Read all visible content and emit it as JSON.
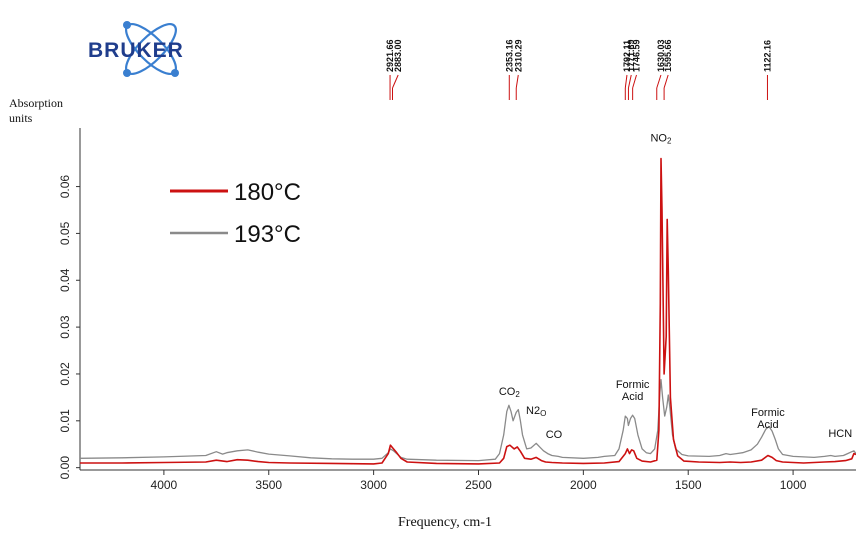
{
  "logo": {
    "text": "BRUKER"
  },
  "colors": {
    "series_180": "#cc1111",
    "series_193": "#8a8a8a",
    "peak_marker": "#cc1111",
    "logo": "#1f3d8c",
    "logo_orbit": "#3a7fd0"
  },
  "chart_data": {
    "type": "line",
    "title": "",
    "xlabel": "Frequency, cm-1",
    "ylabel": "Absorption units",
    "ylabel_lines": [
      "Absorption",
      "units"
    ],
    "xlim": [
      4400,
      700
    ],
    "ylim": [
      -0.0005,
      0.0725
    ],
    "xticks": [
      4000,
      3500,
      3000,
      2500,
      2000,
      1500,
      1000
    ],
    "xtick_labels": [
      "4000",
      "3500",
      "3000",
      "2500",
      "2000",
      "1500",
      "1000"
    ],
    "yticks": [
      0.0,
      0.01,
      0.02,
      0.03,
      0.04,
      0.05,
      0.06
    ],
    "ytick_labels": [
      "0.00",
      "0.01",
      "0.02",
      "0.03",
      "0.04",
      "0.05",
      "0.06"
    ],
    "x_reversed": true,
    "grid": false,
    "legend_position": "top-left",
    "series": [
      {
        "name": "180°C",
        "color": "#cc1111",
        "points": [
          [
            4400,
            0.001
          ],
          [
            4200,
            0.001
          ],
          [
            4000,
            0.0011
          ],
          [
            3800,
            0.0012
          ],
          [
            3750,
            0.0016
          ],
          [
            3700,
            0.0013
          ],
          [
            3650,
            0.0017
          ],
          [
            3600,
            0.0016
          ],
          [
            3550,
            0.0013
          ],
          [
            3500,
            0.0011
          ],
          [
            3400,
            0.001
          ],
          [
            3200,
            0.0009
          ],
          [
            3000,
            0.0008
          ],
          [
            2960,
            0.001
          ],
          [
            2930,
            0.003
          ],
          [
            2920,
            0.0048
          ],
          [
            2905,
            0.004
          ],
          [
            2890,
            0.0032
          ],
          [
            2870,
            0.002
          ],
          [
            2840,
            0.0012
          ],
          [
            2700,
            0.0009
          ],
          [
            2500,
            0.0008
          ],
          [
            2400,
            0.001
          ],
          [
            2380,
            0.002
          ],
          [
            2365,
            0.0045
          ],
          [
            2350,
            0.0048
          ],
          [
            2330,
            0.004
          ],
          [
            2315,
            0.0044
          ],
          [
            2300,
            0.0035
          ],
          [
            2280,
            0.002
          ],
          [
            2250,
            0.0018
          ],
          [
            2225,
            0.0022
          ],
          [
            2200,
            0.0015
          ],
          [
            2180,
            0.0012
          ],
          [
            2150,
            0.0011
          ],
          [
            2100,
            0.001
          ],
          [
            2000,
            0.0009
          ],
          [
            1900,
            0.001
          ],
          [
            1830,
            0.0013
          ],
          [
            1800,
            0.003
          ],
          [
            1790,
            0.004
          ],
          [
            1780,
            0.003
          ],
          [
            1770,
            0.0038
          ],
          [
            1760,
            0.0036
          ],
          [
            1745,
            0.002
          ],
          [
            1720,
            0.0014
          ],
          [
            1680,
            0.0012
          ],
          [
            1650,
            0.0016
          ],
          [
            1640,
            0.008
          ],
          [
            1633,
            0.035
          ],
          [
            1630,
            0.066
          ],
          [
            1625,
            0.055
          ],
          [
            1615,
            0.02
          ],
          [
            1605,
            0.028
          ],
          [
            1600,
            0.053
          ],
          [
            1595,
            0.042
          ],
          [
            1585,
            0.015
          ],
          [
            1570,
            0.006
          ],
          [
            1550,
            0.0025
          ],
          [
            1520,
            0.0014
          ],
          [
            1450,
            0.0012
          ],
          [
            1350,
            0.0011
          ],
          [
            1300,
            0.0012
          ],
          [
            1250,
            0.0011
          ],
          [
            1200,
            0.0012
          ],
          [
            1150,
            0.0016
          ],
          [
            1120,
            0.0026
          ],
          [
            1100,
            0.0022
          ],
          [
            1080,
            0.0015
          ],
          [
            1050,
            0.0012
          ],
          [
            1000,
            0.0011
          ],
          [
            950,
            0.001
          ],
          [
            900,
            0.0011
          ],
          [
            850,
            0.0012
          ],
          [
            800,
            0.0013
          ],
          [
            750,
            0.0015
          ],
          [
            720,
            0.0019
          ],
          [
            710,
            0.003
          ],
          [
            700,
            0.0028
          ]
        ]
      },
      {
        "name": "193°C",
        "color": "#8a8a8a",
        "points": [
          [
            4400,
            0.002
          ],
          [
            4200,
            0.0021
          ],
          [
            4000,
            0.0023
          ],
          [
            3800,
            0.0026
          ],
          [
            3750,
            0.0034
          ],
          [
            3720,
            0.0029
          ],
          [
            3700,
            0.0032
          ],
          [
            3650,
            0.0036
          ],
          [
            3600,
            0.0038
          ],
          [
            3550,
            0.0033
          ],
          [
            3500,
            0.0029
          ],
          [
            3400,
            0.0025
          ],
          [
            3300,
            0.0021
          ],
          [
            3200,
            0.0019
          ],
          [
            3100,
            0.0018
          ],
          [
            3000,
            0.0018
          ],
          [
            2960,
            0.002
          ],
          [
            2930,
            0.0032
          ],
          [
            2920,
            0.004
          ],
          [
            2905,
            0.0036
          ],
          [
            2890,
            0.003
          ],
          [
            2870,
            0.0022
          ],
          [
            2840,
            0.0018
          ],
          [
            2700,
            0.0016
          ],
          [
            2500,
            0.0015
          ],
          [
            2420,
            0.0018
          ],
          [
            2400,
            0.003
          ],
          [
            2380,
            0.007
          ],
          [
            2365,
            0.012
          ],
          [
            2355,
            0.0133
          ],
          [
            2345,
            0.012
          ],
          [
            2335,
            0.01
          ],
          [
            2320,
            0.0118
          ],
          [
            2310,
            0.0124
          ],
          [
            2300,
            0.01
          ],
          [
            2290,
            0.007
          ],
          [
            2270,
            0.004
          ],
          [
            2250,
            0.0042
          ],
          [
            2225,
            0.0052
          ],
          [
            2210,
            0.0045
          ],
          [
            2190,
            0.0036
          ],
          [
            2170,
            0.003
          ],
          [
            2150,
            0.0026
          ],
          [
            2120,
            0.0024
          ],
          [
            2100,
            0.0022
          ],
          [
            2000,
            0.002
          ],
          [
            1930,
            0.0022
          ],
          [
            1900,
            0.0024
          ],
          [
            1850,
            0.0026
          ],
          [
            1830,
            0.004
          ],
          [
            1810,
            0.008
          ],
          [
            1800,
            0.011
          ],
          [
            1790,
            0.0105
          ],
          [
            1785,
            0.009
          ],
          [
            1775,
            0.0105
          ],
          [
            1765,
            0.0112
          ],
          [
            1755,
            0.0105
          ],
          [
            1740,
            0.007
          ],
          [
            1720,
            0.004
          ],
          [
            1700,
            0.0032
          ],
          [
            1680,
            0.003
          ],
          [
            1660,
            0.004
          ],
          [
            1645,
            0.008
          ],
          [
            1635,
            0.016
          ],
          [
            1630,
            0.0188
          ],
          [
            1622,
            0.015
          ],
          [
            1612,
            0.011
          ],
          [
            1602,
            0.013
          ],
          [
            1595,
            0.0155
          ],
          [
            1588,
            0.013
          ],
          [
            1575,
            0.007
          ],
          [
            1560,
            0.004
          ],
          [
            1530,
            0.0028
          ],
          [
            1500,
            0.0025
          ],
          [
            1400,
            0.0024
          ],
          [
            1350,
            0.0026
          ],
          [
            1320,
            0.003
          ],
          [
            1300,
            0.0028
          ],
          [
            1270,
            0.003
          ],
          [
            1240,
            0.0032
          ],
          [
            1200,
            0.0038
          ],
          [
            1170,
            0.005
          ],
          [
            1150,
            0.0065
          ],
          [
            1130,
            0.0082
          ],
          [
            1115,
            0.0088
          ],
          [
            1100,
            0.0078
          ],
          [
            1085,
            0.006
          ],
          [
            1070,
            0.004
          ],
          [
            1050,
            0.0028
          ],
          [
            1000,
            0.0024
          ],
          [
            950,
            0.0023
          ],
          [
            900,
            0.0022
          ],
          [
            850,
            0.0024
          ],
          [
            820,
            0.0026
          ],
          [
            800,
            0.0024
          ],
          [
            760,
            0.0026
          ],
          [
            740,
            0.003
          ],
          [
            720,
            0.0034
          ],
          [
            710,
            0.0036
          ],
          [
            700,
            0.003
          ]
        ]
      }
    ],
    "peak_markers": [
      {
        "label": "2921.66",
        "x": 2921.66,
        "tick_x": 2921.66
      },
      {
        "label": "2883.00",
        "x": 2883.0,
        "tick_x": 2910.0
      },
      {
        "label": "2353.16",
        "x": 2353.16,
        "tick_x": 2353.16
      },
      {
        "label": "2310.29",
        "x": 2310.29,
        "tick_x": 2320.0
      },
      {
        "label": "1792.11",
        "x": 1792.11,
        "tick_x": 1800.0
      },
      {
        "label": "1771.69",
        "x": 1771.69,
        "tick_x": 1785.0
      },
      {
        "label": "1746.59",
        "x": 1746.59,
        "tick_x": 1765.0
      },
      {
        "label": "1630.03",
        "x": 1630.03,
        "tick_x": 1650.0
      },
      {
        "label": "1595.66",
        "x": 1595.66,
        "tick_x": 1615.0
      },
      {
        "label": "1122.16",
        "x": 1122.16,
        "tick_x": 1122.16
      }
    ],
    "annotations": [
      {
        "id": "no2",
        "lines": [
          "NO2"
        ],
        "x": 1630,
        "y": 0.0696,
        "sub_index": 1
      },
      {
        "id": "co2",
        "lines": [
          "CO2"
        ],
        "x": 2353,
        "y": 0.0155,
        "sub_index": 1
      },
      {
        "id": "n2o",
        "lines": [
          "N2O"
        ],
        "x": 2225,
        "y": 0.0115,
        "sub_index": 1
      },
      {
        "id": "co",
        "lines": [
          "CO"
        ],
        "x": 2140,
        "y": 0.0063
      },
      {
        "id": "formic-acid-1",
        "lines": [
          "Formic",
          "Acid"
        ],
        "x": 1765,
        "y": 0.017
      },
      {
        "id": "formic-acid-2",
        "lines": [
          "Formic",
          "Acid"
        ],
        "x": 1120,
        "y": 0.011
      },
      {
        "id": "hcn",
        "lines": [
          "HCN"
        ],
        "x": 775,
        "y": 0.0065
      }
    ]
  }
}
